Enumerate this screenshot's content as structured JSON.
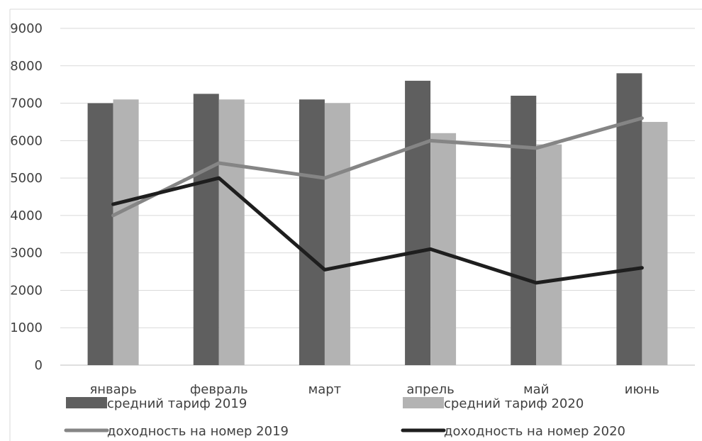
{
  "chart_data": {
    "type": "bar",
    "categories": [
      "январь",
      "февраль",
      "март",
      "апрель",
      "май",
      "июнь"
    ],
    "series": [
      {
        "name": "средний тариф 2019",
        "kind": "bar",
        "color": "#5f5f5f",
        "values": [
          7000,
          7250,
          7100,
          7600,
          7200,
          7800
        ]
      },
      {
        "name": "средний тариф 2020",
        "kind": "bar",
        "color": "#b3b3b3",
        "values": [
          7100,
          7100,
          7000,
          6200,
          5900,
          6500
        ]
      },
      {
        "name": "доходность на номер 2019",
        "kind": "line",
        "color": "#858585",
        "values": [
          4000,
          5400,
          5000,
          6000,
          5800,
          6600
        ]
      },
      {
        "name": "доходность на номер 2020",
        "kind": "line",
        "color": "#1e1e1e",
        "values": [
          4300,
          5000,
          2550,
          3100,
          2200,
          2600
        ]
      }
    ],
    "ylim": [
      0,
      9000
    ],
    "yticks": [
      0,
      1000,
      2000,
      3000,
      4000,
      5000,
      6000,
      7000,
      8000,
      9000
    ],
    "grid": true,
    "legend": "bottom"
  }
}
